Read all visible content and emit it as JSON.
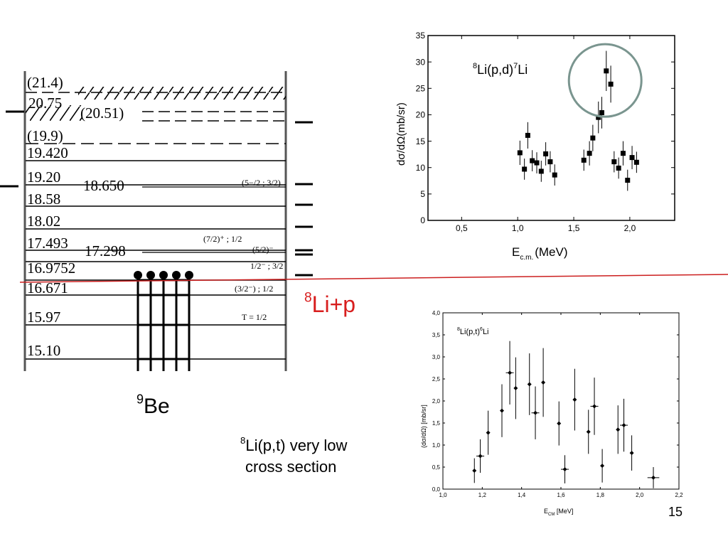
{
  "slide": {
    "page_number": "15",
    "label_be": {
      "sup": "9",
      "text": "Be"
    },
    "label_lip": {
      "sup": "8",
      "text": "Li+p"
    },
    "note": {
      "sup": "8",
      "line1": "Li(p,t) very low",
      "line2": "cross section"
    },
    "colors": {
      "threshold_line": "#cc1f1f",
      "circle": "#7a958f",
      "label_red": "#d81e1e"
    }
  },
  "level_scheme": {
    "levels_left": [
      "(21.4)",
      "20.75",
      "(19.9)",
      "19.420",
      "19.20",
      "18.58",
      "18.02",
      "17.493",
      "16.9752",
      "16.671",
      "15.97",
      "15.10"
    ],
    "levels_mid": [
      "(20.51)",
      "18.650",
      "17.298"
    ],
    "spins": [
      "(5−/2 ; 3/2)",
      "(7/2)⁺ ; 1/2",
      "(5/2)⁻",
      "1/2⁻ ; 3/2",
      "(3/2⁻) ; 1/2",
      "T = 1/2"
    ]
  },
  "chart_data": [
    {
      "type": "scatter",
      "title": "8Li(p,d)7Li",
      "title_parts": {
        "sup": "8",
        "a": "Li(p,d)",
        "sup2": "7",
        "b": "Li"
      },
      "xlabel": "E c.m. (MeV)",
      "xlabel_parts": {
        "main": "E",
        "sub": "c.m.",
        "rest": "(MeV)"
      },
      "ylabel": "dσ/dΩ(mb/sr)",
      "xlim": [
        0.2,
        2.4
      ],
      "ylim": [
        0,
        35
      ],
      "x_ticks": [
        "0,5",
        "1,0",
        "1,5",
        "2,0"
      ],
      "x_tick_values": [
        0.5,
        1.0,
        1.5,
        2.0
      ],
      "y_ticks": [
        "0",
        "5",
        "10",
        "15",
        "20",
        "25",
        "30",
        "35"
      ],
      "y_tick_values": [
        0,
        5,
        10,
        15,
        20,
        25,
        30,
        35
      ],
      "marker": "square",
      "highlight_circle": {
        "x": 1.78,
        "y": 26.5
      },
      "points": [
        {
          "x": 1.02,
          "y": 12.8,
          "err": 2.3
        },
        {
          "x": 1.06,
          "y": 9.7,
          "err": 2.0
        },
        {
          "x": 1.09,
          "y": 16.1,
          "err": 2.5
        },
        {
          "x": 1.13,
          "y": 11.3,
          "err": 2.0
        },
        {
          "x": 1.17,
          "y": 10.9,
          "err": 2.0
        },
        {
          "x": 1.21,
          "y": 9.3,
          "err": 2.0
        },
        {
          "x": 1.25,
          "y": 12.6,
          "err": 2.2
        },
        {
          "x": 1.29,
          "y": 11.1,
          "err": 2.0
        },
        {
          "x": 1.33,
          "y": 8.6,
          "err": 2.0
        },
        {
          "x": 1.59,
          "y": 11.4,
          "err": 2.0
        },
        {
          "x": 1.64,
          "y": 12.7,
          "err": 2.3
        },
        {
          "x": 1.67,
          "y": 15.6,
          "err": 2.5
        },
        {
          "x": 1.72,
          "y": 19.5,
          "err": 3.0
        },
        {
          "x": 1.75,
          "y": 20.4,
          "err": 3.0
        },
        {
          "x": 1.79,
          "y": 28.3,
          "err": 3.8
        },
        {
          "x": 1.83,
          "y": 25.8,
          "err": 3.5
        },
        {
          "x": 1.86,
          "y": 11.1,
          "err": 2.0
        },
        {
          "x": 1.9,
          "y": 9.9,
          "err": 2.0
        },
        {
          "x": 1.94,
          "y": 12.7,
          "err": 2.3
        },
        {
          "x": 1.98,
          "y": 7.6,
          "err": 2.0
        },
        {
          "x": 2.02,
          "y": 11.9,
          "err": 2.2
        },
        {
          "x": 2.06,
          "y": 11.0,
          "err": 2.0
        }
      ]
    },
    {
      "type": "scatter",
      "title": "8Li(p,t)6Li",
      "title_parts": {
        "sup": "8",
        "a": "Li(p,t)",
        "sup2": "6",
        "b": "Li"
      },
      "xlabel": "E CM [MeV]",
      "xlabel_parts": {
        "main": "E",
        "sub": "CM",
        "rest": " [MeV]"
      },
      "ylabel": "(dσ/dΩ) [mb/sr]",
      "xlim": [
        1.0,
        2.2
      ],
      "ylim": [
        0.0,
        4.0
      ],
      "x_ticks": [
        "1,0",
        "1,2",
        "1,4",
        "1,6",
        "1,8",
        "2,0",
        "2,2"
      ],
      "x_tick_values": [
        1.0,
        1.2,
        1.4,
        1.6,
        1.8,
        2.0,
        2.2
      ],
      "y_ticks": [
        "0,0",
        "0,5",
        "1,0",
        "1,5",
        "2,0",
        "2,5",
        "3,0",
        "3,5",
        "4,0"
      ],
      "y_tick_values": [
        0.0,
        0.5,
        1.0,
        1.5,
        2.0,
        2.5,
        3.0,
        3.5,
        4.0
      ],
      "marker": "diamond",
      "points": [
        {
          "x": 1.16,
          "y": 0.42,
          "err": 0.28,
          "xerr": 0.0
        },
        {
          "x": 1.19,
          "y": 0.75,
          "err": 0.38,
          "xerr": 0.02
        },
        {
          "x": 1.23,
          "y": 1.28,
          "err": 0.5,
          "xerr": 0.0
        },
        {
          "x": 1.3,
          "y": 1.78,
          "err": 0.6,
          "xerr": 0.0
        },
        {
          "x": 1.34,
          "y": 2.64,
          "err": 0.72,
          "xerr": 0.02
        },
        {
          "x": 1.37,
          "y": 2.29,
          "err": 0.7,
          "xerr": 0.0
        },
        {
          "x": 1.44,
          "y": 2.38,
          "err": 0.7,
          "xerr": 0.0
        },
        {
          "x": 1.47,
          "y": 1.73,
          "err": 0.6,
          "xerr": 0.02
        },
        {
          "x": 1.51,
          "y": 2.42,
          "err": 0.78,
          "xerr": 0.0
        },
        {
          "x": 1.59,
          "y": 1.49,
          "err": 0.5,
          "xerr": 0.0
        },
        {
          "x": 1.62,
          "y": 0.45,
          "err": 0.32,
          "xerr": 0.02
        },
        {
          "x": 1.67,
          "y": 2.03,
          "err": 0.7,
          "xerr": 0.0
        },
        {
          "x": 1.74,
          "y": 1.3,
          "err": 0.5,
          "xerr": 0.0
        },
        {
          "x": 1.77,
          "y": 1.88,
          "err": 0.65,
          "xerr": 0.02
        },
        {
          "x": 1.81,
          "y": 0.53,
          "err": 0.38,
          "xerr": 0.0
        },
        {
          "x": 1.89,
          "y": 1.35,
          "err": 0.55,
          "xerr": 0.0
        },
        {
          "x": 1.92,
          "y": 1.45,
          "err": 0.6,
          "xerr": 0.02
        },
        {
          "x": 1.96,
          "y": 0.82,
          "err": 0.4,
          "xerr": 0.0
        },
        {
          "x": 2.07,
          "y": 0.26,
          "err": 0.24,
          "xerr": 0.03
        }
      ]
    }
  ]
}
